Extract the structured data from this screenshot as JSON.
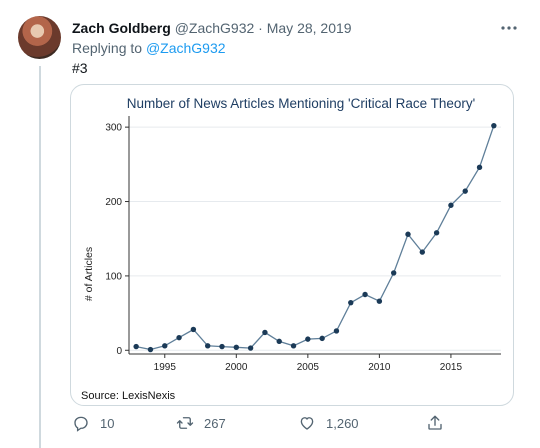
{
  "tweet": {
    "display_name": "Zach Goldberg",
    "handle": "@ZachG932",
    "separator": "·",
    "date": "May 28, 2019",
    "replying_prefix": "Replying to",
    "replying_to": "@ZachG932",
    "text": "#3"
  },
  "actions": {
    "reply_count": "10",
    "retweet_count": "267",
    "like_count": "1,260"
  },
  "icons": {
    "more": "more-icon",
    "reply": "reply-icon",
    "retweet": "retweet-icon",
    "like": "like-icon",
    "share": "share-icon"
  },
  "colors": {
    "line": "#5f7f99",
    "marker": "#1b3a57",
    "title": "#1f3e63",
    "mention": "#1d9bf0"
  },
  "chart_data": {
    "type": "line",
    "title": "Number of News Articles Mentioning 'Critical Race Theory'",
    "xlabel": "",
    "ylabel": "# of Articles",
    "x": [
      1993,
      1994,
      1995,
      1996,
      1997,
      1998,
      1999,
      2000,
      2001,
      2002,
      2003,
      2004,
      2005,
      2006,
      2007,
      2008,
      2009,
      2010,
      2011,
      2012,
      2013,
      2014,
      2015,
      2016,
      2017,
      2018
    ],
    "y": [
      5,
      1,
      6,
      17,
      28,
      6,
      5,
      4,
      3,
      24,
      12,
      6,
      15,
      16,
      26,
      64,
      75,
      66,
      104,
      156,
      132,
      158,
      195,
      214,
      246,
      302
    ],
    "xticks": [
      1995,
      2000,
      2005,
      2010,
      2015
    ],
    "yticks": [
      0,
      100,
      200,
      300
    ],
    "xlim": [
      1992.5,
      2018.5
    ],
    "ylim": [
      -5,
      315
    ],
    "grid": true,
    "source": "Source: LexisNexis"
  }
}
